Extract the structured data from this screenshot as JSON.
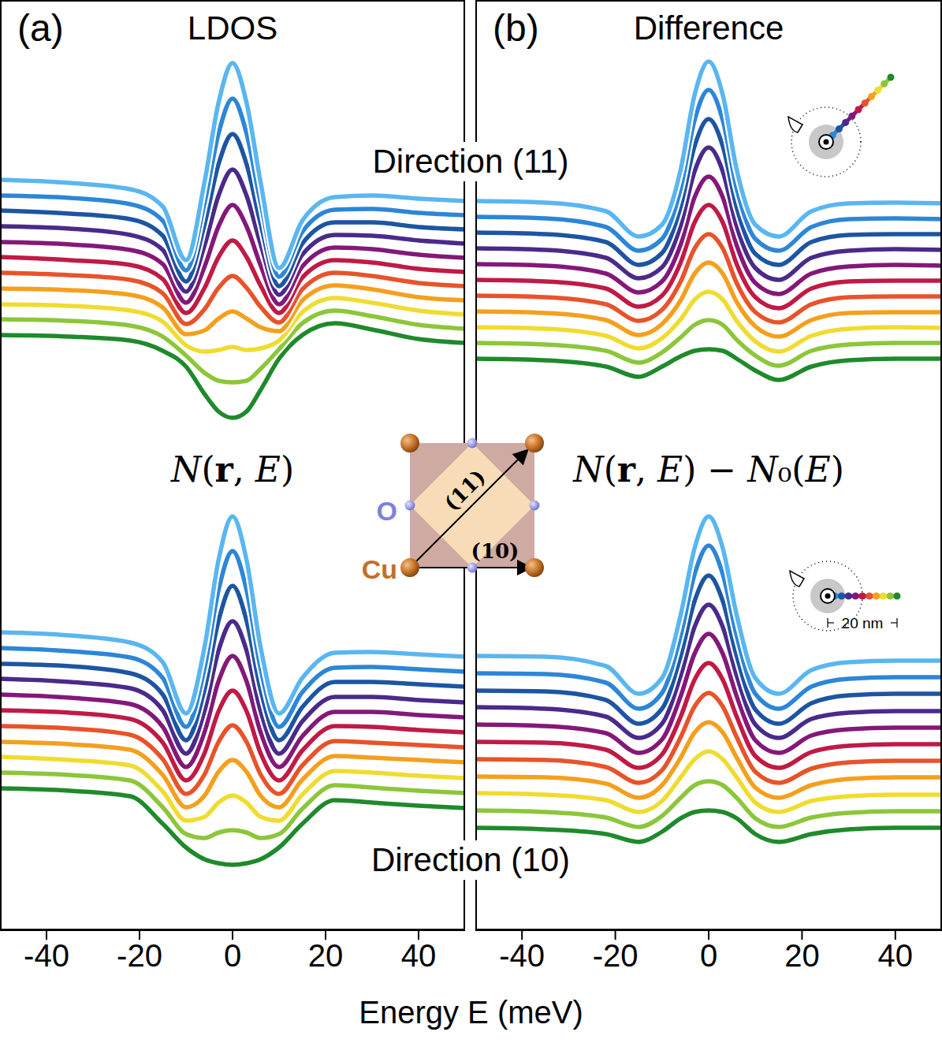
{
  "xlabel": "Energy E (meV)",
  "directions": [
    "Direction (11)",
    "Direction (10)"
  ],
  "lattice": {
    "atoms": [
      "Cu",
      "O"
    ],
    "arrows": [
      "(11)",
      "(10)"
    ]
  },
  "scale_bar": "20 nm",
  "chart_data": [
    {
      "type": "line",
      "panel": "(a)",
      "title": "LDOS",
      "quantity": "N(r, E)",
      "x": [
        -50,
        -35,
        -22,
        -15,
        -10,
        -6,
        -3,
        0,
        3,
        6,
        10,
        15,
        22,
        30,
        40,
        50
      ],
      "xlim": [
        -50,
        50
      ],
      "xticks": [
        -40,
        -20,
        0,
        20,
        40
      ],
      "ylim": [
        0,
        1180
      ],
      "tick_labels": "x",
      "series": [
        {
          "direction": "Direction (11)",
          "color": "#5ab6f0",
          "values": [
            952,
            948,
            940,
            918,
            850,
            950,
            1050,
            1100,
            1050,
            950,
            840,
            900,
            930,
            932,
            928,
            925
          ]
        },
        {
          "direction": "Direction (11)",
          "color": "#2d86d6",
          "values": [
            932,
            929,
            921,
            900,
            837,
            923,
            1011,
            1055,
            1011,
            924,
            829,
            886,
            914,
            915,
            910,
            907
          ]
        },
        {
          "direction": "Direction (11)",
          "color": "#1d55a2",
          "values": [
            913,
            909,
            902,
            881,
            823,
            896,
            972,
            1010,
            972,
            897,
            817,
            871,
            898,
            898,
            892,
            889
          ]
        },
        {
          "direction": "Direction (11)",
          "color": "#4a2a8a",
          "values": [
            893,
            890,
            882,
            863,
            810,
            869,
            932,
            965,
            932,
            871,
            806,
            857,
            882,
            881,
            875,
            871
          ]
        },
        {
          "direction": "Direction (11)",
          "color": "#84187a",
          "values": [
            873,
            870,
            863,
            845,
            796,
            842,
            893,
            920,
            893,
            844,
            794,
            842,
            866,
            864,
            857,
            853
          ]
        },
        {
          "direction": "Direction (11)",
          "color": "#c01a45",
          "values": [
            854,
            850,
            844,
            826,
            783,
            815,
            854,
            875,
            854,
            818,
            783,
            828,
            850,
            847,
            839,
            835
          ]
        },
        {
          "direction": "Direction (11)",
          "color": "#e8532a",
          "values": [
            834,
            831,
            825,
            808,
            769,
            788,
            815,
            830,
            815,
            791,
            771,
            813,
            834,
            830,
            821,
            817
          ]
        },
        {
          "direction": "Direction (11)",
          "color": "#f4a01e",
          "values": [
            814,
            812,
            806,
            790,
            756,
            761,
            776,
            785,
            776,
            765,
            760,
            799,
            818,
            813,
            803,
            799
          ]
        },
        {
          "direction": "Direction (11)",
          "color": "#f0dc30",
          "values": [
            794,
            792,
            786,
            772,
            742,
            734,
            736,
            740,
            736,
            738,
            748,
            784,
            802,
            796,
            786,
            781
          ]
        },
        {
          "direction": "Direction (11)",
          "color": "#8cc63a",
          "values": [
            775,
            773,
            767,
            753,
            729,
            707,
            697,
            695,
            697,
            712,
            737,
            770,
            786,
            779,
            768,
            763
          ]
        },
        {
          "direction": "Direction (11)",
          "color": "#1f8a2b",
          "values": [
            755,
            753,
            748,
            735,
            715,
            680,
            658,
            650,
            658,
            685,
            725,
            755,
            770,
            762,
            750,
            745
          ]
        },
        {
          "direction": "Direction (10)",
          "color": "#5ab6f0",
          "values": [
            378,
            374,
            365,
            340,
            275,
            360,
            470,
            525,
            470,
            360,
            275,
            320,
            352,
            353,
            350,
            347
          ]
        },
        {
          "direction": "Direction (10)",
          "color": "#2d86d6",
          "values": [
            358,
            354,
            346,
            320,
            258,
            333,
            432,
            481,
            432,
            333,
            258,
            302,
            333,
            334,
            331,
            328
          ]
        },
        {
          "direction": "Direction (10)",
          "color": "#1d55a2",
          "values": [
            338,
            335,
            326,
            299,
            241,
            306,
            393,
            437,
            393,
            306,
            241,
            283,
            315,
            315,
            312,
            309
          ]
        },
        {
          "direction": "Direction (10)",
          "color": "#4a2a8a",
          "values": [
            319,
            315,
            307,
            279,
            224,
            279,
            355,
            392,
            355,
            279,
            224,
            265,
            296,
            296,
            292,
            289
          ]
        },
        {
          "direction": "Direction (10)",
          "color": "#84187a",
          "values": [
            299,
            295,
            287,
            258,
            207,
            252,
            316,
            348,
            316,
            252,
            207,
            246,
            277,
            277,
            273,
            270
          ]
        },
        {
          "direction": "Direction (10)",
          "color": "#c01a45",
          "values": [
            279,
            276,
            268,
            238,
            190,
            225,
            278,
            304,
            278,
            225,
            190,
            228,
            259,
            258,
            254,
            251
          ]
        },
        {
          "direction": "Direction (10)",
          "color": "#e8532a",
          "values": [
            259,
            256,
            248,
            217,
            173,
            198,
            239,
            260,
            239,
            198,
            173,
            209,
            240,
            238,
            235,
            232
          ]
        },
        {
          "direction": "Direction (10)",
          "color": "#f4a01e",
          "values": [
            239,
            236,
            229,
            197,
            156,
            171,
            201,
            216,
            201,
            171,
            156,
            191,
            221,
            219,
            216,
            213
          ]
        },
        {
          "direction": "Direction (10)",
          "color": "#f0dc30",
          "values": [
            220,
            216,
            209,
            176,
            139,
            144,
            162,
            171,
            162,
            144,
            139,
            172,
            202,
            200,
            196,
            193
          ]
        },
        {
          "direction": "Direction (10)",
          "color": "#8cc63a",
          "values": [
            200,
            197,
            190,
            156,
            122,
            117,
            124,
            127,
            124,
            117,
            122,
            154,
            184,
            181,
            177,
            174
          ]
        },
        {
          "direction": "Direction (10)",
          "color": "#1f8a2b",
          "values": [
            180,
            177,
            170,
            135,
            105,
            90,
            85,
            83,
            85,
            90,
            105,
            135,
            165,
            162,
            158,
            155
          ]
        }
      ]
    },
    {
      "type": "line",
      "panel": "(b)",
      "title": "Difference",
      "quantity": "N(r, E) − N₀(E)",
      "x": [
        -50,
        -35,
        -22,
        -15,
        -10,
        -6,
        -3,
        0,
        3,
        6,
        10,
        15,
        22,
        30,
        40,
        50
      ],
      "xlim": [
        -50,
        50
      ],
      "xticks": [
        -40,
        -20,
        0,
        20,
        40
      ],
      "ylim": [
        0,
        1180
      ],
      "tick_labels": "x",
      "series": [
        {
          "direction": "Direction (11)",
          "color": "#5ab6f0",
          "values": [
            925,
            923,
            912,
            880,
            895,
            965,
            1060,
            1102,
            1060,
            965,
            895,
            880,
            912,
            922,
            923,
            922
          ]
        },
        {
          "direction": "Direction (11)",
          "color": "#2d86d6",
          "values": [
            905,
            903,
            892,
            862,
            877,
            941,
            1028,
            1066,
            1028,
            941,
            877,
            862,
            892,
            902,
            903,
            902
          ]
        },
        {
          "direction": "Direction (11)",
          "color": "#1d55a2",
          "values": [
            885,
            883,
            873,
            844,
            859,
            918,
            995,
            1029,
            995,
            917,
            858,
            844,
            873,
            882,
            883,
            883
          ]
        },
        {
          "direction": "Direction (11)",
          "color": "#4a2a8a",
          "values": [
            865,
            863,
            853,
            827,
            841,
            894,
            963,
            993,
            963,
            893,
            840,
            825,
            853,
            862,
            864,
            863
          ]
        },
        {
          "direction": "Direction (11)",
          "color": "#84187a",
          "values": [
            845,
            843,
            833,
            809,
            823,
            870,
            930,
            956,
            930,
            869,
            821,
            807,
            833,
            842,
            844,
            843
          ]
        },
        {
          "direction": "Direction (11)",
          "color": "#c01a45",
          "values": [
            825,
            823,
            814,
            791,
            805,
            847,
            898,
            920,
            898,
            845,
            803,
            789,
            814,
            823,
            824,
            824
          ]
        },
        {
          "direction": "Direction (11)",
          "color": "#e8532a",
          "values": [
            805,
            803,
            794,
            773,
            787,
            823,
            865,
            883,
            865,
            821,
            784,
            771,
            794,
            803,
            804,
            804
          ]
        },
        {
          "direction": "Direction (11)",
          "color": "#f4a01e",
          "values": [
            785,
            783,
            774,
            755,
            769,
            799,
            833,
            847,
            833,
            797,
            766,
            753,
            774,
            783,
            784,
            784
          ]
        },
        {
          "direction": "Direction (11)",
          "color": "#f0dc30",
          "values": [
            765,
            763,
            754,
            738,
            751,
            775,
            800,
            810,
            800,
            773,
            747,
            734,
            754,
            763,
            765,
            764
          ]
        },
        {
          "direction": "Direction (11)",
          "color": "#8cc63a",
          "values": [
            745,
            743,
            735,
            720,
            733,
            752,
            768,
            774,
            768,
            749,
            729,
            716,
            735,
            743,
            745,
            745
          ]
        },
        {
          "direction": "Direction (11)",
          "color": "#1f8a2b",
          "values": [
            725,
            723,
            715,
            702,
            715,
            728,
            735,
            737,
            735,
            725,
            710,
            698,
            715,
            723,
            725,
            725
          ]
        },
        {
          "direction": "Direction (10)",
          "color": "#5ab6f0",
          "values": [
            348,
            347,
            335,
            300,
            320,
            400,
            485,
            525,
            485,
            400,
            320,
            300,
            330,
            340,
            342,
            342
          ]
        },
        {
          "direction": "Direction (10)",
          "color": "#2d86d6",
          "values": [
            326,
            325,
            314,
            281,
            301,
            374,
            452,
            488,
            452,
            374,
            300,
            281,
            309,
            319,
            321,
            321
          ]
        },
        {
          "direction": "Direction (10)",
          "color": "#1d55a2",
          "values": [
            304,
            303,
            292,
            262,
            281,
            348,
            418,
            450,
            418,
            348,
            280,
            262,
            288,
            298,
            300,
            300
          ]
        },
        {
          "direction": "Direction (10)",
          "color": "#4a2a8a",
          "values": [
            283,
            281,
            271,
            244,
            262,
            323,
            385,
            413,
            385,
            323,
            261,
            244,
            268,
            276,
            278,
            278
          ]
        },
        {
          "direction": "Direction (10)",
          "color": "#84187a",
          "values": [
            261,
            259,
            250,
            225,
            242,
            297,
            351,
            376,
            351,
            297,
            241,
            225,
            247,
            255,
            257,
            257
          ]
        },
        {
          "direction": "Direction (10)",
          "color": "#c01a45",
          "values": [
            239,
            238,
            229,
            206,
            223,
            271,
            318,
            339,
            318,
            271,
            221,
            206,
            226,
            234,
            236,
            236
          ]
        },
        {
          "direction": "Direction (10)",
          "color": "#e8532a",
          "values": [
            217,
            216,
            207,
            187,
            203,
            245,
            284,
            301,
            284,
            245,
            201,
            187,
            205,
            213,
            215,
            215
          ]
        },
        {
          "direction": "Direction (10)",
          "color": "#f4a01e",
          "values": [
            195,
            194,
            186,
            168,
            184,
            219,
            251,
            264,
            251,
            219,
            181,
            168,
            184,
            192,
            194,
            194
          ]
        },
        {
          "direction": "Direction (10)",
          "color": "#f0dc30",
          "values": [
            174,
            172,
            165,
            150,
            164,
            194,
            217,
            227,
            217,
            194,
            162,
            150,
            164,
            170,
            172,
            172
          ]
        },
        {
          "direction": "Direction (10)",
          "color": "#8cc63a",
          "values": [
            152,
            150,
            143,
            131,
            145,
            168,
            184,
            189,
            184,
            168,
            142,
            131,
            143,
            149,
            151,
            151
          ]
        },
        {
          "direction": "Direction (10)",
          "color": "#1f8a2b",
          "values": [
            130,
            128,
            122,
            112,
            125,
            142,
            150,
            152,
            150,
            142,
            122,
            112,
            122,
            128,
            130,
            130
          ]
        }
      ]
    }
  ]
}
